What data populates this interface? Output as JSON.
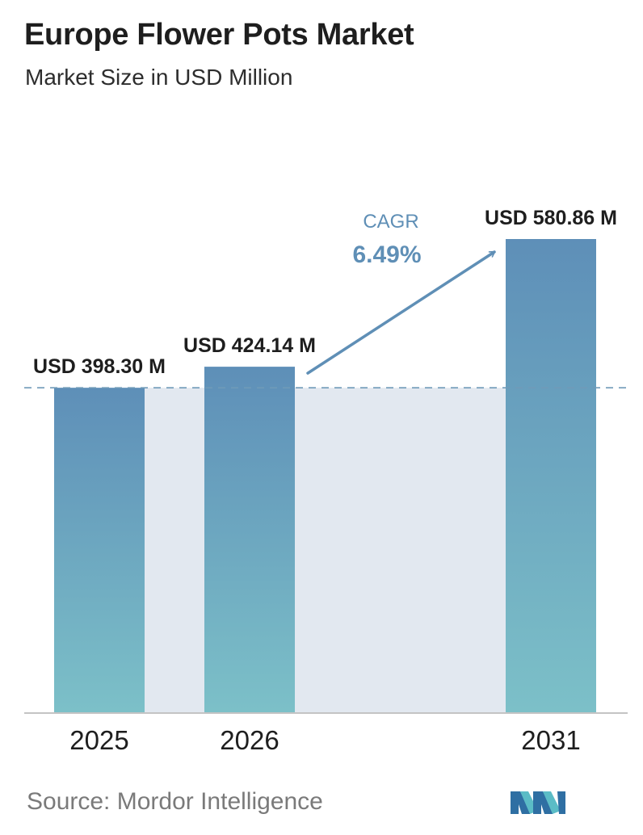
{
  "header": {
    "title": "Europe Flower Pots Market",
    "subtitle": "Market Size in USD Million"
  },
  "chart_data": {
    "type": "bar",
    "categories": [
      "2025",
      "2026",
      "2031"
    ],
    "values": [
      398.3,
      424.14,
      580.86
    ],
    "value_labels": [
      "USD 398.30 M",
      "USD 424.14 M",
      "USD 580.86 M"
    ],
    "title": "Europe Flower Pots Market",
    "subtitle": "Market Size in USD Million",
    "xlabel": "",
    "ylabel": "",
    "ylim": [
      0,
      580.86
    ],
    "grid": false,
    "reference_line": {
      "value": 398.3,
      "style": "dashed"
    },
    "annotation": {
      "label": "CAGR",
      "value": "6.49%",
      "from": "2026",
      "to": "2031"
    },
    "colors": {
      "bar_top": "#5e8fb8",
      "bar_bottom": "#7cc0c8",
      "shade": "#e2e8f0",
      "arrow": "#5f8fb6",
      "axis": "#c4c4c4",
      "ref_line": "#6f9ab8"
    }
  },
  "footer": {
    "source": "Source:  Mordor Intelligence",
    "logo_icon": "mordor-intelligence-logo-icon"
  }
}
